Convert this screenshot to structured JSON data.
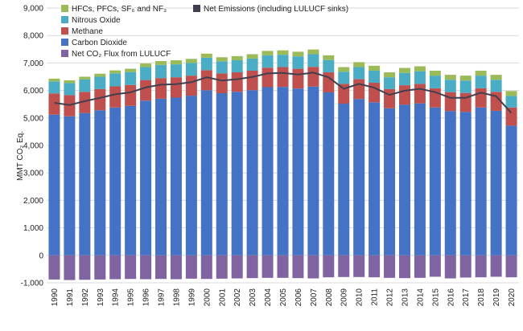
{
  "chart_data": {
    "type": "bar",
    "stacked": true,
    "ylabel": "MMT CO₂ Eq.",
    "ylim": [
      -1000,
      9000
    ],
    "yticks": [
      "-1,000",
      "0",
      "1,000",
      "2,000",
      "3,000",
      "4,000",
      "5,000",
      "6,000",
      "7,000",
      "8,000",
      "9,000"
    ],
    "ytick_values": [
      -1000,
      0,
      1000,
      2000,
      3000,
      4000,
      5000,
      6000,
      7000,
      8000,
      9000
    ],
    "grid": true,
    "legend_position": "top-left",
    "categories": [
      "1990",
      "1991",
      "1992",
      "1993",
      "1994",
      "1995",
      "1996",
      "1997",
      "1998",
      "1999",
      "2000",
      "2001",
      "2002",
      "2003",
      "2004",
      "2005",
      "2006",
      "2007",
      "2008",
      "2009",
      "2010",
      "2011",
      "2012",
      "2013",
      "2014",
      "2015",
      "2016",
      "2017",
      "2018",
      "2019",
      "2020"
    ],
    "series": [
      {
        "name": "Carbon Dioxide",
        "color": "#4472c4",
        "values": [
          5120,
          5060,
          5180,
          5280,
          5380,
          5440,
          5630,
          5700,
          5740,
          5810,
          6010,
          5900,
          5950,
          6010,
          6120,
          6130,
          6070,
          6140,
          5930,
          5520,
          5690,
          5570,
          5350,
          5480,
          5530,
          5380,
          5250,
          5220,
          5380,
          5260,
          4720
        ]
      },
      {
        "name": "Methane",
        "color": "#c0504d",
        "values": [
          770,
          770,
          770,
          770,
          770,
          760,
          750,
          750,
          740,
          730,
          730,
          720,
          710,
          710,
          710,
          720,
          720,
          720,
          730,
          720,
          720,
          710,
          700,
          710,
          710,
          700,
          690,
          690,
          700,
          690,
          660
        ]
      },
      {
        "name": "Nitrous Oxide",
        "color": "#4bacc6",
        "values": [
          440,
          440,
          450,
          450,
          470,
          470,
          470,
          480,
          470,
          460,
          450,
          440,
          440,
          440,
          450,
          450,
          450,
          460,
          450,
          440,
          440,
          440,
          430,
          450,
          460,
          460,
          450,
          450,
          460,
          440,
          420
        ]
      },
      {
        "name": "HFCs, PFCs, SF₆ and NF₃",
        "color": "#9bbb59",
        "values": [
          100,
          100,
          100,
          110,
          110,
          120,
          130,
          140,
          150,
          150,
          150,
          150,
          150,
          160,
          160,
          160,
          170,
          170,
          170,
          170,
          180,
          180,
          180,
          180,
          180,
          180,
          180,
          180,
          180,
          180,
          180
        ]
      },
      {
        "name": "Net CO₂ Flux from LULUCF",
        "color": "#8064a2",
        "values": [
          -880,
          -900,
          -890,
          -880,
          -870,
          -860,
          -870,
          -860,
          -870,
          -850,
          -860,
          -850,
          -840,
          -830,
          -820,
          -820,
          -830,
          -840,
          -800,
          -790,
          -790,
          -800,
          -820,
          -830,
          -820,
          -780,
          -840,
          -810,
          -800,
          -780,
          -800
        ]
      }
    ],
    "line_series": {
      "name": "Net Emissions (including LULUCF sinks)",
      "color": "#404050",
      "values": [
        5550,
        5470,
        5610,
        5730,
        5860,
        5930,
        6110,
        6210,
        6230,
        6300,
        6480,
        6360,
        6410,
        6490,
        6620,
        6640,
        6580,
        6650,
        6480,
        6060,
        6240,
        6100,
        5840,
        5990,
        6060,
        5940,
        5730,
        5730,
        5920,
        5790,
        5180
      ]
    }
  }
}
